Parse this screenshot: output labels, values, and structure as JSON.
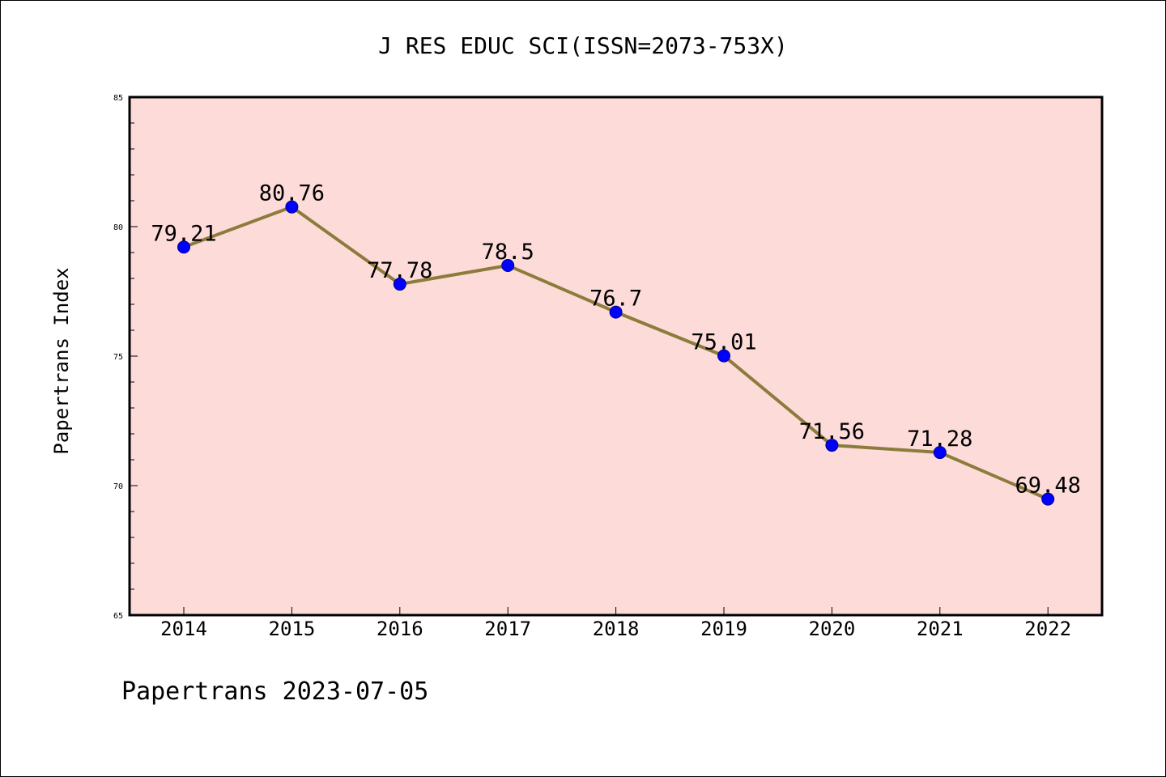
{
  "chart_data": {
    "type": "line",
    "title": "J RES EDUC SCI(ISSN=2073-753X)",
    "ylabel": "Papertrans Index",
    "xlabel": "",
    "categories": [
      "2014",
      "2015",
      "2016",
      "2017",
      "2018",
      "2019",
      "2020",
      "2021",
      "2022"
    ],
    "values": [
      79.21,
      80.76,
      77.78,
      78.5,
      76.7,
      75.01,
      71.56,
      71.28,
      69.48
    ],
    "data_labels": [
      "79.21",
      "80.76",
      "77.78",
      "78.5",
      "76.7",
      "75.01",
      "71.56",
      "71.28",
      "69.48"
    ],
    "ylim": [
      65,
      85
    ],
    "yticks": [
      65,
      70,
      75,
      80,
      85
    ],
    "ytick_labels": [
      "65",
      "70",
      "75",
      "80",
      "85"
    ],
    "grid": false,
    "legend": "none",
    "colors": {
      "plot_background": "#fddbd9",
      "line": "#8c7c3c",
      "marker_fill": "#0000ff",
      "marker_edge": "#00008b"
    }
  },
  "footer": {
    "text": "Papertrans 2023-07-05"
  }
}
